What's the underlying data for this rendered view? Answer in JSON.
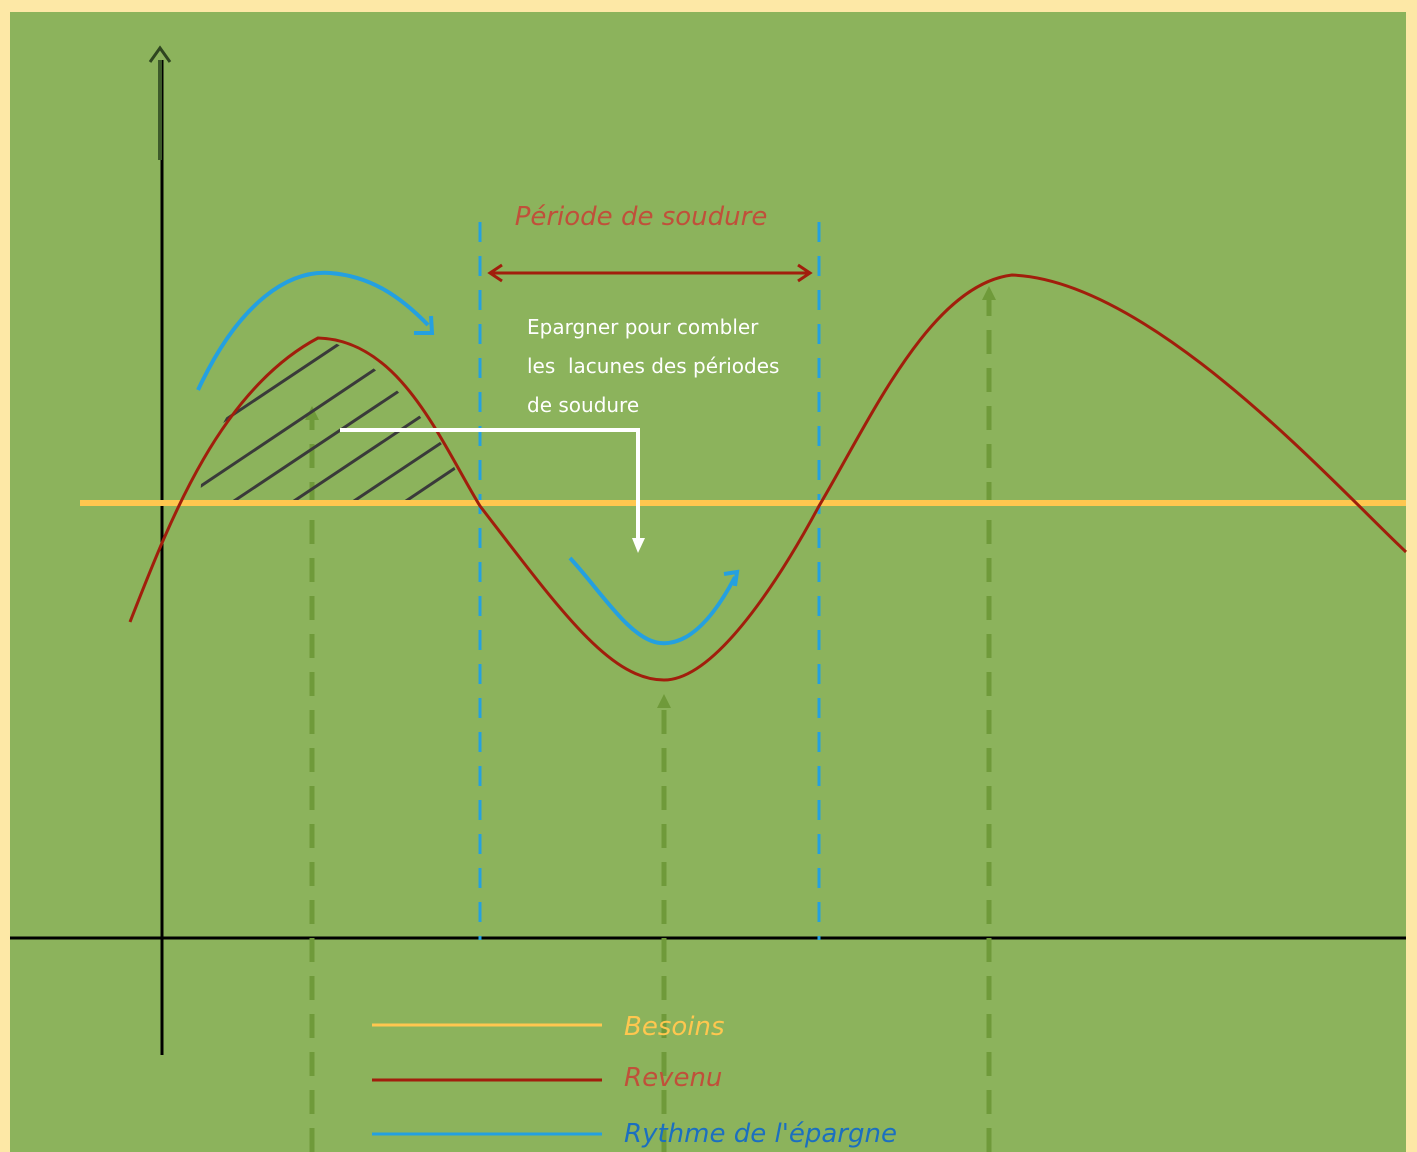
{
  "colors": {
    "page_border": "#fde8a6",
    "background": "#8cb35c",
    "besoins": "#ffc74f",
    "revenu": "#a11e0c",
    "revenu_label": "#c0503a",
    "epargne": "#24a0e0",
    "epargne_label": "#1b6fc0",
    "guides": "#6f9a3a",
    "axes": "#000000",
    "note": "#ffffff",
    "hatch": "#3a3a3a"
  },
  "annotations": {
    "period": "Période de soudure",
    "note_lines": [
      "Epargner pour combler",
      "les  lacunes des périodes",
      "de soudure"
    ]
  },
  "legend": [
    {
      "key": "besoins",
      "label": "Besoins"
    },
    {
      "key": "revenu",
      "label": "Revenu"
    },
    {
      "key": "epargne",
      "label": "Rythme de l'épargne"
    }
  ]
}
